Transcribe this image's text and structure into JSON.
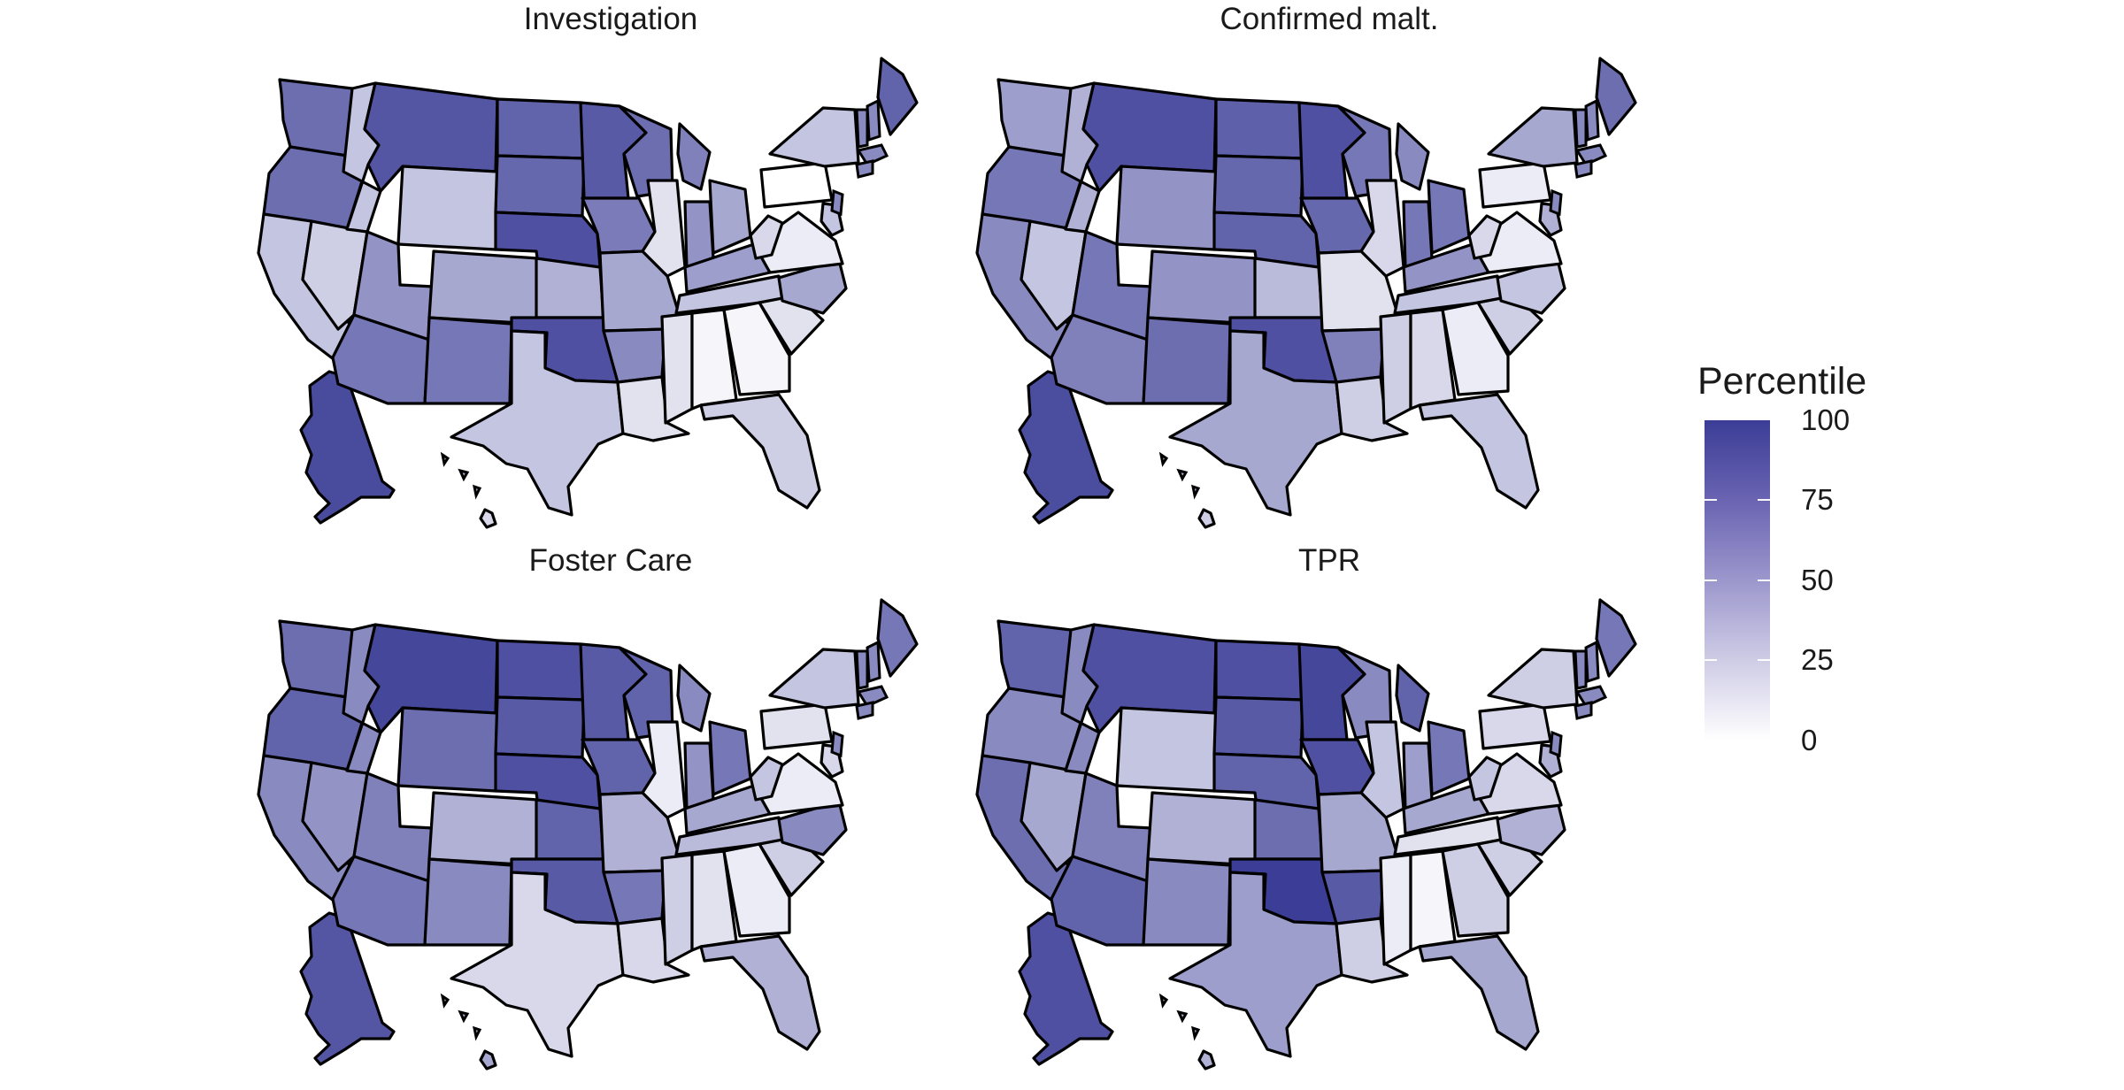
{
  "panels": [
    {
      "title": "Investigation"
    },
    {
      "title": "Confirmed malt."
    },
    {
      "title": "Foster Care"
    },
    {
      "title": "TPR"
    }
  ],
  "legend": {
    "title": "Percentile",
    "labels": [
      "100",
      "75",
      "50",
      "25",
      "0"
    ],
    "low_color": "#ffffff",
    "high_color": "#3b3d96"
  },
  "map_data": {
    "states": [
      "AK",
      "HI",
      "WA",
      "OR",
      "CA",
      "NV",
      "ID",
      "MT",
      "WY",
      "UT",
      "AZ",
      "CO",
      "NM",
      "ND",
      "SD",
      "NE",
      "KS",
      "OK",
      "TX",
      "MN",
      "IA",
      "MO",
      "AR",
      "LA",
      "WI",
      "IL",
      "MI",
      "IN",
      "OH",
      "KY",
      "TN",
      "MS",
      "AL",
      "GA",
      "FL",
      "SC",
      "NC",
      "VA",
      "WV",
      "PA",
      "NY",
      "ME",
      "MD"
    ],
    "percentiles": {
      "Investigation": [
        93,
        20,
        75,
        75,
        30,
        25,
        30,
        87,
        30,
        55,
        70,
        45,
        70,
        80,
        78,
        90,
        40,
        90,
        30,
        85,
        68,
        45,
        60,
        15,
        75,
        15,
        65,
        55,
        45,
        50,
        30,
        15,
        5,
        5,
        25,
        15,
        45,
        10,
        20,
        0,
        30,
        80,
        30
      ],
      "Confirmed malt.": [
        92,
        25,
        50,
        70,
        60,
        30,
        40,
        90,
        55,
        70,
        65,
        55,
        75,
        82,
        78,
        80,
        35,
        90,
        45,
        90,
        78,
        15,
        65,
        25,
        70,
        20,
        60,
        70,
        70,
        55,
        30,
        25,
        20,
        10,
        30,
        25,
        30,
        10,
        20,
        10,
        45,
        75,
        40
      ],
      "Foster Care": [
        87,
        45,
        75,
        80,
        60,
        55,
        60,
        95,
        75,
        65,
        70,
        40,
        60,
        90,
        85,
        90,
        80,
        85,
        20,
        85,
        80,
        40,
        70,
        20,
        80,
        10,
        60,
        55,
        70,
        45,
        35,
        25,
        15,
        10,
        40,
        25,
        60,
        10,
        30,
        15,
        30,
        70,
        20
      ],
      "TPR": [
        90,
        40,
        80,
        60,
        75,
        45,
        60,
        90,
        30,
        65,
        80,
        40,
        60,
        90,
        85,
        80,
        75,
        100,
        50,
        95,
        90,
        45,
        85,
        25,
        60,
        30,
        80,
        50,
        70,
        45,
        15,
        10,
        5,
        25,
        45,
        25,
        40,
        20,
        30,
        20,
        25,
        70,
        40
      ]
    }
  }
}
